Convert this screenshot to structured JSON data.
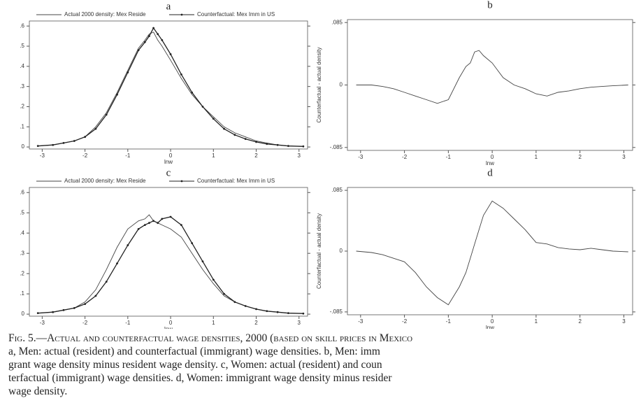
{
  "chart_data": [
    {
      "type": "line",
      "title": "a",
      "xlabel": "lnw",
      "legend": "top",
      "x": [
        -3.1,
        -2.75,
        -2.5,
        -2.25,
        -2,
        -1.75,
        -1.5,
        -1.25,
        -1,
        -0.75,
        -0.6,
        -0.5,
        -0.4,
        -0.3,
        -0.2,
        0,
        0.25,
        0.5,
        0.75,
        1,
        1.25,
        1.5,
        1.75,
        2,
        2.25,
        2.5,
        2.75,
        3.1
      ],
      "series": [
        {
          "name": "Actual 2000 density: Mex Reside",
          "color": "#444",
          "values": [
            0.005,
            0.01,
            0.02,
            0.03,
            0.05,
            0.1,
            0.17,
            0.27,
            0.38,
            0.49,
            0.53,
            0.56,
            0.57,
            0.53,
            0.5,
            0.43,
            0.34,
            0.26,
            0.2,
            0.15,
            0.1,
            0.07,
            0.05,
            0.03,
            0.02,
            0.01,
            0.005,
            0.003
          ]
        },
        {
          "name": "Counterfactual: Mex Imm in US",
          "color": "#222",
          "marker": "dot",
          "values": [
            0.005,
            0.01,
            0.02,
            0.03,
            0.05,
            0.09,
            0.16,
            0.26,
            0.37,
            0.48,
            0.52,
            0.55,
            0.59,
            0.56,
            0.53,
            0.46,
            0.36,
            0.27,
            0.2,
            0.14,
            0.09,
            0.06,
            0.04,
            0.025,
            0.015,
            0.01,
            0.005,
            0.003
          ]
        }
      ],
      "xlim": [
        -3.3,
        3.2
      ],
      "ylim": [
        -0.01,
        0.625
      ],
      "xticks": [
        -3,
        -2,
        -1,
        0,
        1,
        2,
        3
      ],
      "yticks": [
        0,
        {
          "value": 0.1,
          "label": ".1"
        },
        {
          "value": 0.2,
          "label": ".2"
        },
        {
          "value": 0.3,
          "label": ".3"
        },
        {
          "value": 0.4,
          "label": ".4"
        },
        {
          "value": 0.5,
          "label": ".5"
        },
        {
          "value": 0.6,
          "label": ".6"
        }
      ]
    },
    {
      "type": "line",
      "title": "b",
      "xlabel": "lnw",
      "ylabel": "Counterfactual - actual density",
      "x": [
        -3.1,
        -2.75,
        -2.5,
        -2.25,
        -2,
        -1.75,
        -1.5,
        -1.25,
        -1,
        -0.75,
        -0.6,
        -0.5,
        -0.4,
        -0.3,
        -0.2,
        0,
        0.25,
        0.5,
        0.75,
        1,
        1.25,
        1.5,
        1.75,
        2,
        2.25,
        2.5,
        2.75,
        3.1
      ],
      "series": [
        {
          "name": "Counterfactual - actual density",
          "color": "#444",
          "values": [
            0,
            0,
            -0.002,
            -0.005,
            -0.01,
            -0.015,
            -0.02,
            -0.025,
            -0.02,
            0.01,
            0.025,
            0.03,
            0.045,
            0.047,
            0.04,
            0.03,
            0.01,
            0,
            -0.005,
            -0.012,
            -0.015,
            -0.01,
            -0.008,
            -0.005,
            -0.003,
            -0.002,
            -0.001,
            0
          ]
        }
      ],
      "xlim": [
        -3.3,
        3.2
      ],
      "ylim": [
        -0.089,
        0.089
      ],
      "xticks": [
        -3,
        -2,
        -1,
        0,
        1,
        2,
        3
      ],
      "yticks": [
        {
          "value": -0.085,
          "label": "-.085"
        },
        0,
        {
          "value": 0.085,
          "label": ".085"
        }
      ]
    },
    {
      "type": "line",
      "title": "c",
      "xlabel": "lnw",
      "legend": "top",
      "x": [
        -3.1,
        -2.75,
        -2.5,
        -2.25,
        -2,
        -1.75,
        -1.5,
        -1.25,
        -1,
        -0.75,
        -0.6,
        -0.5,
        -0.4,
        -0.3,
        -0.2,
        0,
        0.25,
        0.5,
        0.75,
        1,
        1.25,
        1.5,
        1.75,
        2,
        2.25,
        2.5,
        2.75,
        3.1
      ],
      "series": [
        {
          "name": "Actual 2000 density: Mex Reside",
          "color": "#444",
          "values": [
            0.005,
            0.01,
            0.02,
            0.03,
            0.06,
            0.12,
            0.22,
            0.33,
            0.42,
            0.46,
            0.47,
            0.49,
            0.46,
            0.45,
            0.44,
            0.42,
            0.38,
            0.3,
            0.22,
            0.15,
            0.09,
            0.06,
            0.04,
            0.025,
            0.015,
            0.01,
            0.005,
            0.003
          ]
        },
        {
          "name": "Counterfactual: Mex Imm in US",
          "color": "#222",
          "marker": "dot",
          "values": [
            0.005,
            0.01,
            0.02,
            0.03,
            0.05,
            0.09,
            0.16,
            0.25,
            0.34,
            0.42,
            0.44,
            0.45,
            0.46,
            0.45,
            0.47,
            0.48,
            0.44,
            0.35,
            0.26,
            0.17,
            0.1,
            0.06,
            0.04,
            0.025,
            0.015,
            0.01,
            0.005,
            0.003
          ]
        }
      ],
      "xlim": [
        -3.3,
        3.2
      ],
      "ylim": [
        -0.01,
        0.625
      ],
      "xticks": [
        -3,
        -2,
        -1,
        0,
        1,
        2,
        3
      ],
      "yticks": [
        0,
        {
          "value": 0.1,
          "label": ".1"
        },
        {
          "value": 0.2,
          "label": ".2"
        },
        {
          "value": 0.3,
          "label": ".3"
        },
        {
          "value": 0.4,
          "label": ".4"
        },
        {
          "value": 0.5,
          "label": ".5"
        },
        {
          "value": 0.6,
          "label": ".6"
        }
      ]
    },
    {
      "type": "line",
      "title": "d",
      "xlabel": "lnw",
      "ylabel": "Counterfactual - actual density",
      "x": [
        -3.1,
        -2.75,
        -2.5,
        -2.25,
        -2,
        -1.75,
        -1.5,
        -1.25,
        -1,
        -0.75,
        -0.6,
        -0.5,
        -0.4,
        -0.3,
        -0.2,
        0,
        0.25,
        0.5,
        0.75,
        1,
        1.25,
        1.5,
        1.75,
        2,
        2.25,
        2.5,
        2.75,
        3.1
      ],
      "series": [
        {
          "name": "Counterfactual - actual density",
          "color": "#444",
          "values": [
            0,
            -0.002,
            -0.005,
            -0.01,
            -0.015,
            -0.03,
            -0.05,
            -0.065,
            -0.075,
            -0.05,
            -0.03,
            -0.01,
            0.01,
            0.03,
            0.05,
            0.07,
            0.06,
            0.045,
            0.03,
            0.012,
            0.01,
            0.005,
            0.003,
            0.002,
            0.004,
            0.002,
            0,
            -0.001
          ]
        }
      ],
      "xlim": [
        -3.3,
        3.2
      ],
      "ylim": [
        -0.089,
        0.089
      ],
      "xticks": [
        -3,
        -2,
        -1,
        0,
        1,
        2,
        3
      ],
      "yticks": [
        {
          "value": -0.085,
          "label": "-.085"
        },
        0,
        {
          "value": 0.085,
          "label": ".085"
        }
      ]
    }
  ],
  "caption": [
    "Fig. 5.—Actual and counterfactual wage densities, 2000 (based on skill prices in Mexico",
    "a, Men: actual (resident) and counterfactual (immigrant) wage densities. b, Men: imm",
    "grant wage density minus resident wage density. c, Women: actual (resident) and coun",
    "terfactual (immigrant) wage densities. d, Women: immigrant wage density minus resider",
    "wage density."
  ]
}
